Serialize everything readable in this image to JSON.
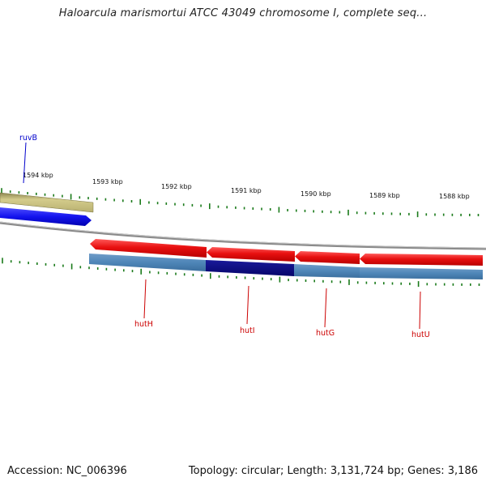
{
  "header": {
    "title": "Haloarcula marismortui ATCC 43049 chromosome I, complete seq..."
  },
  "footer": {
    "accession": "Accession: NC_006396",
    "topology": "Topology: circular; Length: 3,131,724 bp; Genes: 3,186"
  },
  "ruler": {
    "labels": [
      "1594 kbp",
      "1593 kbp",
      "1592 kbp",
      "1591 kbp",
      "1590 kbp",
      "1589 kbp",
      "1588 kbp"
    ]
  },
  "genes": [
    {
      "name": "ruvB",
      "strand": "forward",
      "color": "#0000cc"
    },
    {
      "name": "hutH",
      "strand": "reverse",
      "color": "#cc0000"
    },
    {
      "name": "hutI",
      "strand": "reverse",
      "color": "#cc0000"
    },
    {
      "name": "hutG",
      "strand": "reverse",
      "color": "#cc0000"
    },
    {
      "name": "hutU",
      "strand": "reverse",
      "color": "#cc0000"
    }
  ],
  "colors": {
    "forward_cds": "#1a1aee",
    "reverse_cds": "#e01010",
    "cog_olive": "#c8c07a",
    "cog_blue": "#4f86b8",
    "cog_navy": "#0a0a80",
    "backbone": "#8a8a8a",
    "ticks": "#1a7a1a",
    "label_forward": "#0000cc",
    "label_reverse": "#cc0000"
  }
}
